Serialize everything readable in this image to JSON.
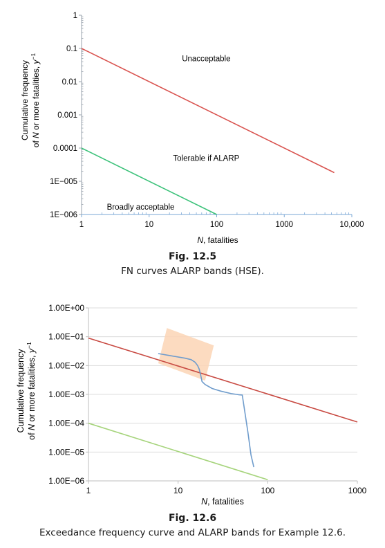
{
  "chart_data": [
    {
      "type": "line",
      "figure_label": "Fig. 12.5",
      "caption": "FN curves ALARP bands (HSE).",
      "xlabel_italic": "N",
      "xlabel_rest": ", fatalities",
      "ylabel_line1": "Cumulative frequency",
      "ylabel_line2_pre": "of ",
      "ylabel_line2_italic": "N",
      "ylabel_line2_mid": " or more fatalities, ",
      "ylabel_line2_unit": "y",
      "ylabel_line2_exp": "−1",
      "x_scale": "log",
      "y_scale": "log",
      "xlim": [
        1,
        10000
      ],
      "ylim": [
        1e-06,
        1
      ],
      "x_ticks": [
        {
          "value": 1,
          "label": "1"
        },
        {
          "value": 10,
          "label": "10"
        },
        {
          "value": 100,
          "label": "100"
        },
        {
          "value": 1000,
          "label": "1000"
        },
        {
          "value": 10000,
          "label": "10,000"
        }
      ],
      "y_ticks": [
        {
          "value": 1,
          "label": "1"
        },
        {
          "value": 0.1,
          "label": "0.1"
        },
        {
          "value": 0.01,
          "label": "0.01"
        },
        {
          "value": 0.001,
          "label": "0.001"
        },
        {
          "value": 0.0001,
          "label": "0.0001"
        },
        {
          "value": 1e-05,
          "label": "1E−005"
        },
        {
          "value": 1e-06,
          "label": "1E−006"
        }
      ],
      "grid": false,
      "series": [
        {
          "color": "#d9534f",
          "x": [
            1,
            5500
          ],
          "y": [
            0.1,
            1.82e-05
          ]
        },
        {
          "color": "#3cc27a",
          "x": [
            1,
            100
          ],
          "y": [
            0.0001,
            1e-06
          ]
        }
      ],
      "annotations": [
        {
          "text": "Unacceptable",
          "x": 70,
          "y": 0.05
        },
        {
          "text": "Tolerable if ALARP",
          "x": 70,
          "y": 5e-05
        },
        {
          "text": "Broadly acceptable",
          "x": 7.5,
          "y": 1.7e-06
        }
      ]
    },
    {
      "type": "line",
      "figure_label": "Fig. 12.6",
      "caption": "Exceedance frequency curve and ALARP bands for Example 12.6.",
      "xlabel_italic": "N",
      "xlabel_rest": ", fatalities",
      "ylabel_line1": "Cumulative frequency",
      "ylabel_line2_pre": "of ",
      "ylabel_line2_italic": "N",
      "ylabel_line2_mid": " or more fatalities, ",
      "ylabel_line2_unit": "y",
      "ylabel_line2_exp": "−1",
      "x_scale": "log",
      "y_scale": "log",
      "xlim": [
        1,
        1000
      ],
      "ylim": [
        1e-06,
        1
      ],
      "x_ticks": [
        {
          "value": 1,
          "label": "1"
        },
        {
          "value": 10,
          "label": "10"
        },
        {
          "value": 100,
          "label": "100"
        },
        {
          "value": 1000,
          "label": "1000"
        }
      ],
      "y_ticks": [
        {
          "value": 1,
          "label": "1.00E+00"
        },
        {
          "value": 0.1,
          "label": "1.00E−01"
        },
        {
          "value": 0.01,
          "label": "1.00E−02"
        },
        {
          "value": 0.001,
          "label": "1.00E−03"
        },
        {
          "value": 0.0001,
          "label": "1.00E−04"
        },
        {
          "value": 1e-05,
          "label": "1.00E−05"
        },
        {
          "value": 1e-06,
          "label": "1.00E−06"
        }
      ],
      "grid": "horizontal",
      "highlight_region": {
        "color": "#fbd5b5",
        "corners": [
          {
            "x": 7.5,
            "y": 0.2
          },
          {
            "x": 25,
            "y": 0.05
          },
          {
            "x": 20,
            "y": 0.003
          },
          {
            "x": 6,
            "y": 0.012
          }
        ]
      },
      "series": [
        {
          "color": "#c84a42",
          "x": [
            1,
            1000
          ],
          "y": [
            0.09,
            0.00011
          ]
        },
        {
          "color": "#a6d47c",
          "x": [
            1,
            100
          ],
          "y": [
            0.0001,
            1.1e-06
          ]
        },
        {
          "color": "#6f9ccc",
          "x": [
            6,
            9,
            12,
            14,
            15.5,
            16.5,
            17.2,
            17.8,
            18.5,
            20,
            24,
            30,
            40,
            45,
            48,
            52,
            60,
            65,
            70
          ],
          "y": [
            0.026,
            0.021,
            0.018,
            0.016,
            0.013,
            0.01,
            0.0075,
            0.005,
            0.0028,
            0.0022,
            0.0016,
            0.0013,
            0.00105,
            0.001,
            0.00097,
            0.00095,
            5e-05,
            8e-06,
            3e-06
          ]
        }
      ]
    }
  ]
}
